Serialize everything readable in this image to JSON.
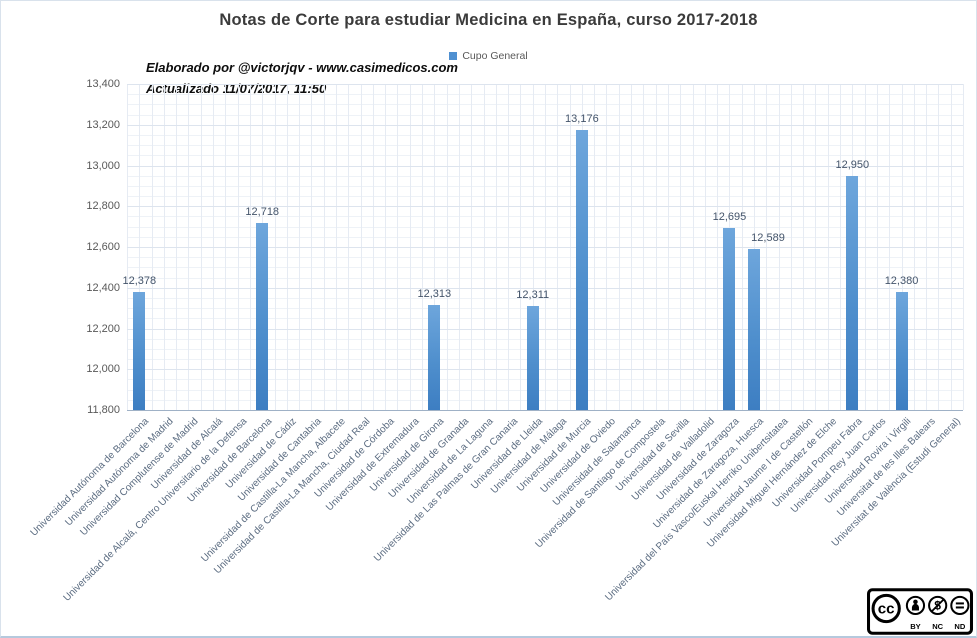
{
  "title": "Notas de Corte para estudiar Medicina en España, curso 2017-2018",
  "legend": {
    "label": "Cupo General",
    "color": "#4f90d1"
  },
  "annotation": {
    "line1": "Elaborado por @victorjqv - www.casimedicos.com",
    "line2": "Actualizado 11/07/2017, 11:50"
  },
  "chart_data": {
    "type": "bar",
    "title": "Notas de Corte para estudiar Medicina en España, curso 2017-2018",
    "series_name": "Cupo General",
    "legend_position": "top",
    "grid": true,
    "ylim": [
      11800,
      13400
    ],
    "y_major_step": 200,
    "y_minor_step": 50,
    "y_tick_labels": [
      "11,800",
      "12,000",
      "12,200",
      "12,400",
      "12,600",
      "12,800",
      "13,000",
      "13,200",
      "13,400"
    ],
    "categories": [
      "Universidad Autónoma de Barcelona",
      "Universidad Autónoma de Madrid",
      "Universidad Complutense de Madrid",
      "Universidad de Alcalá",
      "Universidad de Alcalá, Centro Universitario de la Defensa",
      "Universidad de Barcelona",
      "Universidad de Cádiz",
      "Universidad de Cantabria",
      "Universidad de Castilla-La Mancha, Albacete",
      "Universidad de Castilla-La Mancha, Ciudad Real",
      "Universidad de Córdoba",
      "Universidad de Extremadura",
      "Universidad de Girona",
      "Universidad de Granada",
      "Universidad de La Laguna",
      "Universidad de Las Palmas de Gran Canaria",
      "Universidad de Lleida",
      "Universidad de Málaga",
      "Universidad de Murcia",
      "Universidad de Oviedo",
      "Universidad de Salamanca",
      "Universidad de Santiago de Compostela",
      "Universidad de Sevilla",
      "Universidad de Valladolid",
      "Universidad de Zaragoza",
      "Universidad de Zaragoza, Huesca",
      "Universidad del País Vasco/Euskal Herriko Unibertsitatea",
      "Universidad Jaume I de Castellón",
      "Universidad Miguel Hernández de Elche",
      "Universidad Pompeu Fabra",
      "Universidad Rey Juan Carlos",
      "Universidad Rovira i Virgili",
      "Universitat de les Illes Balears",
      "Universitat de València (Estudi General)"
    ],
    "values": [
      12378,
      null,
      null,
      null,
      null,
      12718,
      null,
      null,
      null,
      null,
      null,
      null,
      12313,
      null,
      null,
      null,
      12311,
      null,
      13176,
      null,
      null,
      null,
      null,
      null,
      12695,
      12589,
      null,
      null,
      null,
      12950,
      null,
      12380,
      null,
      null
    ],
    "bar_color_top": "#6ea6dc",
    "bar_color_bottom": "#3d7ec2"
  },
  "cc_badge": {
    "logo_text": "cc",
    "nc_glyph": "$",
    "labels": [
      "BY",
      "NC",
      "ND"
    ]
  }
}
